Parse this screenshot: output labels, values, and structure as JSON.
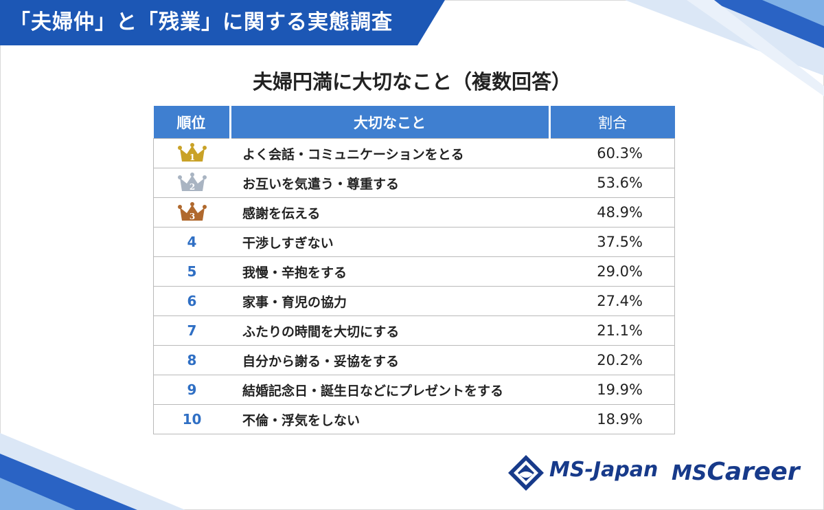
{
  "header": {
    "title": "「夫婦仲」と「残業」に関する実態調査"
  },
  "chart_data": {
    "type": "table",
    "title": "夫婦円満に大切なこと（複数回答）",
    "columns": [
      "順位",
      "大切なこと",
      "割合"
    ],
    "rows": [
      {
        "rank": "1",
        "rank_style": "gold-crown",
        "item": "よく会話・コミュニケーションをとる",
        "percent": "60.3%",
        "value": 60.3
      },
      {
        "rank": "2",
        "rank_style": "silver-crown",
        "item": "お互いを気遣う・尊重する",
        "percent": "53.6%",
        "value": 53.6
      },
      {
        "rank": "3",
        "rank_style": "bronze-crown",
        "item": "感謝を伝える",
        "percent": "48.9%",
        "value": 48.9
      },
      {
        "rank": "4",
        "rank_style": "number",
        "item": "干渉しすぎない",
        "percent": "37.5%",
        "value": 37.5
      },
      {
        "rank": "5",
        "rank_style": "number",
        "item": "我慢・辛抱をする",
        "percent": "29.0%",
        "value": 29.0
      },
      {
        "rank": "6",
        "rank_style": "number",
        "item": "家事・育児の協力",
        "percent": "27.4%",
        "value": 27.4
      },
      {
        "rank": "7",
        "rank_style": "number",
        "item": "ふたりの時間を大切にする",
        "percent": "21.1%",
        "value": 21.1
      },
      {
        "rank": "8",
        "rank_style": "number",
        "item": "自分から謝る・妥協をする",
        "percent": "20.2%",
        "value": 20.2
      },
      {
        "rank": "9",
        "rank_style": "number",
        "item": "結婚記念日・誕生日などにプレゼントをする",
        "percent": "19.9%",
        "value": 19.9
      },
      {
        "rank": "10",
        "rank_style": "number",
        "item": "不倫・浮気をしない",
        "percent": "18.9%",
        "value": 18.9
      }
    ]
  },
  "colors": {
    "banner": "#1c57b5",
    "header_row": "#3f7fd0",
    "rank_number": "#2f6fc4",
    "gold": "#c9a227",
    "silver": "#a9b4c2",
    "bronze": "#b0692e",
    "logo": "#173a8a"
  },
  "footer": {
    "logo1": "MS-Japan",
    "logo2_prefix": "MS",
    "logo2_suffix": "Career"
  }
}
